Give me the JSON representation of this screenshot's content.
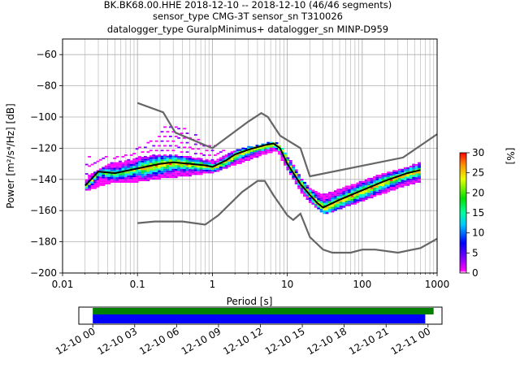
{
  "title_lines": [
    "BK.BK68.00.HHE   2018-12-10 -- 2018-12-10  (46/46 segments)",
    "sensor_type CMG-3T sensor_sn T310026",
    "datalogger_type GuralpMinimus+ datalogger_sn MINP-D959"
  ],
  "chart_data": [
    {
      "type": "heatmap",
      "xlabel": "Period [s]",
      "ylabel": "Power [m²/s⁴/Hz] [dB]",
      "x_scale": "log",
      "xlim": [
        0.01,
        1000
      ],
      "ylim": [
        -200,
        -50
      ],
      "x_ticks": [
        {
          "value": 0.01,
          "label": "0.01"
        },
        {
          "value": 0.1,
          "label": "0.1"
        },
        {
          "value": 1,
          "label": "1"
        },
        {
          "value": 10,
          "label": "10"
        },
        {
          "value": 100,
          "label": "100"
        },
        {
          "value": 1000,
          "label": "1000"
        }
      ],
      "y_ticks": [
        -60,
        -80,
        -100,
        -120,
        -140,
        -160,
        -180,
        -200
      ],
      "grid": true,
      "colorbar": {
        "label": "[%]",
        "range": [
          0,
          30
        ],
        "ticks": [
          0,
          5,
          10,
          15,
          20,
          25,
          30
        ]
      },
      "noise_models": [
        {
          "name": "high",
          "points": [
            [
              0.1,
              -91
            ],
            [
              0.22,
              -97
            ],
            [
              0.32,
              -110
            ],
            [
              1,
              -120
            ],
            [
              3,
              -103
            ],
            [
              4.5,
              -97.5
            ],
            [
              5.5,
              -100
            ],
            [
              8,
              -112
            ],
            [
              15,
              -120
            ],
            [
              20,
              -138
            ],
            [
              350,
              -126
            ],
            [
              1000,
              -111
            ]
          ]
        },
        {
          "name": "low",
          "points": [
            [
              0.1,
              -168
            ],
            [
              0.17,
              -167
            ],
            [
              0.4,
              -167
            ],
            [
              0.8,
              -169
            ],
            [
              1.2,
              -163
            ],
            [
              2.5,
              -148
            ],
            [
              4,
              -141
            ],
            [
              5,
              -141
            ],
            [
              6.5,
              -150
            ],
            [
              10,
              -163
            ],
            [
              12,
              -166
            ],
            [
              15,
              -162
            ],
            [
              20,
              -177
            ],
            [
              30,
              -185
            ],
            [
              40,
              -187
            ],
            [
              70,
              -187
            ],
            [
              100,
              -185
            ],
            [
              150,
              -185
            ],
            [
              300,
              -187
            ],
            [
              600,
              -184
            ],
            [
              1000,
              -178
            ]
          ]
        }
      ],
      "mean_psd": [
        [
          0.02,
          -144
        ],
        [
          0.03,
          -135
        ],
        [
          0.05,
          -136
        ],
        [
          0.1,
          -133
        ],
        [
          0.2,
          -130
        ],
        [
          0.3,
          -129
        ],
        [
          0.5,
          -130
        ],
        [
          0.8,
          -131
        ],
        [
          1,
          -132
        ],
        [
          1.5,
          -128
        ],
        [
          2,
          -124
        ],
        [
          3,
          -121
        ],
        [
          5,
          -118
        ],
        [
          6.5,
          -117
        ],
        [
          8,
          -120
        ],
        [
          10,
          -130
        ],
        [
          15,
          -143
        ],
        [
          20,
          -150
        ],
        [
          25,
          -155
        ],
        [
          30,
          -158
        ],
        [
          50,
          -153
        ],
        [
          100,
          -147
        ],
        [
          200,
          -141
        ],
        [
          400,
          -136
        ],
        [
          600,
          -134
        ]
      ],
      "psd_band": {
        "upper": [
          [
            0.02,
            -139
          ],
          [
            0.04,
            -130
          ],
          [
            0.1,
            -126
          ],
          [
            0.2,
            -124
          ],
          [
            0.5,
            -126
          ],
          [
            1,
            -128
          ],
          [
            2,
            -121
          ],
          [
            5,
            -116
          ],
          [
            7,
            -115
          ],
          [
            10,
            -126
          ],
          [
            15,
            -140
          ],
          [
            20,
            -146
          ],
          [
            30,
            -150
          ],
          [
            100,
            -140
          ],
          [
            300,
            -134
          ],
          [
            600,
            -129
          ]
        ],
        "lower": [
          [
            0.02,
            -146
          ],
          [
            0.04,
            -141
          ],
          [
            0.1,
            -140
          ],
          [
            0.2,
            -138
          ],
          [
            0.5,
            -136
          ],
          [
            1,
            -134
          ],
          [
            2,
            -129
          ],
          [
            5,
            -122
          ],
          [
            7,
            -120
          ],
          [
            10,
            -134
          ],
          [
            15,
            -148
          ],
          [
            20,
            -154
          ],
          [
            30,
            -161
          ],
          [
            100,
            -152
          ],
          [
            300,
            -144
          ],
          [
            600,
            -140
          ]
        ]
      },
      "psd_outliers": {
        "upper": [
          [
            0.05,
            -125
          ],
          [
            0.1,
            -118
          ],
          [
            0.15,
            -114
          ],
          [
            0.22,
            -106
          ],
          [
            0.3,
            -105
          ],
          [
            0.5,
            -108
          ],
          [
            0.8,
            -115
          ],
          [
            1.3,
            -120
          ],
          [
            2,
            -122
          ],
          [
            3,
            -119
          ]
        ]
      }
    },
    {
      "type": "bar",
      "x_ticks": [
        "12-10 00",
        "12-10 03",
        "12-10 06",
        "12-10 09",
        "12-10 12",
        "12-10 15",
        "12-10 18",
        "12-10 21",
        "12-11 00"
      ],
      "xlim_hours": [
        -1,
        25
      ],
      "series": [
        {
          "segment": "data_available",
          "color": "#008000",
          "start_hour": 0,
          "end_hour": 24.4
        },
        {
          "segment": "psd_used",
          "color": "#0000ff",
          "start_hour": 0,
          "end_hour": 23.8
        }
      ]
    }
  ]
}
